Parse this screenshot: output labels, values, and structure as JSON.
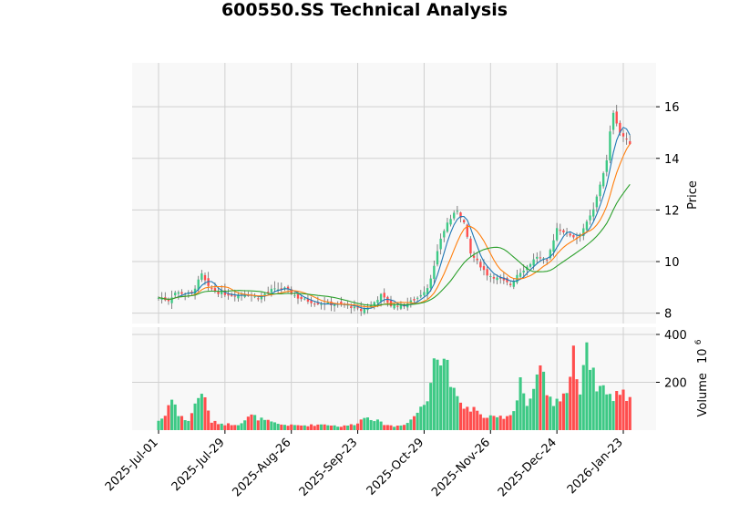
{
  "chart_data": {
    "type": "candlestick",
    "title": "600550.SS Technical Analysis",
    "price_axis": {
      "label": "Price",
      "ticks": [
        8,
        10,
        12,
        14,
        16
      ],
      "range": [
        7.6,
        17.7
      ]
    },
    "volume_axis": {
      "label": "Volume",
      "exponent_label": "10",
      "exponent": "6",
      "ticks": [
        200,
        400
      ],
      "range": [
        0,
        400
      ]
    },
    "x_axis": {
      "ticks": [
        "2025-Jul-01",
        "2025-Jul-29",
        "2025-Aug-26",
        "2025-Sep-23",
        "2025-Oct-29",
        "2025-Nov-26",
        "2025-Dec-24",
        "2026-Jan-23"
      ],
      "tick_index": [
        0,
        20,
        40,
        60,
        80,
        100,
        120,
        140
      ]
    },
    "grid": true,
    "moving_averages": [
      {
        "period": 5,
        "color": "#1f77b4"
      },
      {
        "period": 10,
        "color": "#ff7f0e"
      },
      {
        "period": 20,
        "color": "#2ca02c"
      }
    ],
    "colors": {
      "up": "#26a69a",
      "up_fill": "#3dc985",
      "down": "#ef5350",
      "down_fill": "#ff4d4d",
      "panel_bg": "#f8f8f8",
      "grid": "#d0d0d0"
    },
    "close_anchors": [
      [
        0,
        8.6
      ],
      [
        3,
        8.5
      ],
      [
        5,
        8.8
      ],
      [
        10,
        8.75
      ],
      [
        13,
        9.5
      ],
      [
        15,
        9.0
      ],
      [
        18,
        8.8
      ],
      [
        22,
        8.7
      ],
      [
        26,
        8.75
      ],
      [
        30,
        8.6
      ],
      [
        34,
        8.9
      ],
      [
        38,
        8.95
      ],
      [
        42,
        8.6
      ],
      [
        47,
        8.4
      ],
      [
        52,
        8.35
      ],
      [
        57,
        8.3
      ],
      [
        61,
        8.1
      ],
      [
        64,
        8.3
      ],
      [
        67,
        8.7
      ],
      [
        70,
        8.3
      ],
      [
        74,
        8.3
      ],
      [
        78,
        8.6
      ],
      [
        81,
        9.0
      ],
      [
        83,
        9.8
      ],
      [
        85,
        10.9
      ],
      [
        87,
        11.5
      ],
      [
        90,
        12.0
      ],
      [
        92,
        11.5
      ],
      [
        94,
        10.3
      ],
      [
        96,
        10.0
      ],
      [
        99,
        9.5
      ],
      [
        103,
        9.3
      ],
      [
        106,
        9.1
      ],
      [
        108,
        9.5
      ],
      [
        111,
        9.8
      ],
      [
        114,
        10.2
      ],
      [
        117,
        10.0
      ],
      [
        120,
        11.3
      ],
      [
        123,
        11.1
      ],
      [
        126,
        10.9
      ],
      [
        129,
        11.5
      ],
      [
        131,
        12.0
      ],
      [
        133,
        13.0
      ],
      [
        135,
        13.9
      ],
      [
        136,
        15.0
      ],
      [
        137,
        15.8
      ],
      [
        138,
        15.4
      ],
      [
        139,
        15.0
      ],
      [
        141,
        14.7
      ],
      [
        142,
        14.6
      ]
    ],
    "volume_anchors": [
      [
        0,
        40
      ],
      [
        2,
        60
      ],
      [
        4,
        150
      ],
      [
        6,
        60
      ],
      [
        9,
        40
      ],
      [
        13,
        170
      ],
      [
        14,
        120
      ],
      [
        16,
        35
      ],
      [
        20,
        25
      ],
      [
        24,
        25
      ],
      [
        28,
        60
      ],
      [
        32,
        40
      ],
      [
        36,
        25
      ],
      [
        40,
        20
      ],
      [
        45,
        20
      ],
      [
        50,
        25
      ],
      [
        55,
        15
      ],
      [
        59,
        25
      ],
      [
        63,
        60
      ],
      [
        67,
        30
      ],
      [
        71,
        15
      ],
      [
        75,
        30
      ],
      [
        79,
        90
      ],
      [
        81,
        130
      ],
      [
        83,
        360
      ],
      [
        85,
        280
      ],
      [
        87,
        300
      ],
      [
        89,
        150
      ],
      [
        91,
        100
      ],
      [
        95,
        90
      ],
      [
        97,
        60
      ],
      [
        101,
        50
      ],
      [
        105,
        60
      ],
      [
        107,
        80
      ],
      [
        109,
        220
      ],
      [
        111,
        100
      ],
      [
        113,
        150
      ],
      [
        115,
        250
      ],
      [
        117,
        160
      ],
      [
        119,
        90
      ],
      [
        121,
        150
      ],
      [
        123,
        165
      ],
      [
        125,
        300
      ],
      [
        127,
        180
      ],
      [
        129,
        380
      ],
      [
        131,
        220
      ],
      [
        133,
        180
      ],
      [
        135,
        175
      ],
      [
        137,
        120
      ],
      [
        139,
        170
      ],
      [
        141,
        140
      ],
      [
        142,
        140
      ]
    ],
    "n_bars": 143
  }
}
